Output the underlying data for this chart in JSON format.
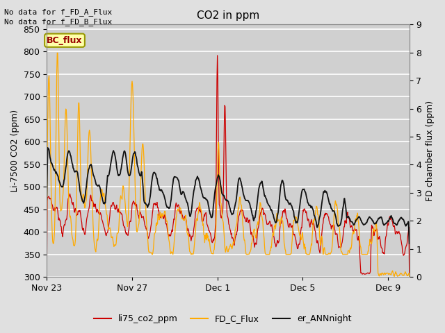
{
  "title": "CO2 in ppm",
  "ylabel_left": "Li-7500 CO2 (ppm)",
  "ylabel_right": "FD chamber flux (ppm)",
  "ylim_left": [
    300,
    860
  ],
  "ylim_right": [
    0.0,
    9.0
  ],
  "yticks_left": [
    300,
    350,
    400,
    450,
    500,
    550,
    600,
    650,
    700,
    750,
    800,
    850
  ],
  "yticks_right": [
    0.0,
    1.0,
    2.0,
    3.0,
    4.0,
    5.0,
    6.0,
    7.0,
    8.0,
    9.0
  ],
  "xtick_labels": [
    "Nov 23",
    "Nov 27",
    "Dec 1",
    "Dec 5",
    "Dec 9"
  ],
  "xtick_positions": [
    0,
    4,
    8,
    12,
    16
  ],
  "xlim": [
    0,
    17
  ],
  "no_data_text1": "No data for f_FD_A_Flux",
  "no_data_text2": "No data for f_FD_B_Flux",
  "bc_flux_label": "BC_flux",
  "legend_entries": [
    "li75_co2_ppm",
    "FD_C_Flux",
    "er_ANNnight"
  ],
  "legend_colors": [
    "#cc0000",
    "#ffaa00",
    "#111111"
  ],
  "line_colors": {
    "li75": "#cc0000",
    "FD_C": "#ffaa00",
    "er_ANN": "#111111"
  },
  "line_widths": {
    "li75": 0.9,
    "FD_C": 0.9,
    "er_ANN": 1.3
  },
  "background_color": "#e0e0e0",
  "plot_bg_color": "#d0d0d0",
  "grid_color": "#ffffff",
  "figsize": [
    6.4,
    4.8
  ],
  "dpi": 100,
  "n_points": 800
}
